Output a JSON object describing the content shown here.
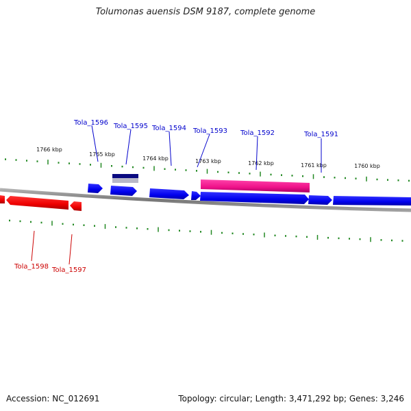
{
  "title": "Tolumonas auensis DSM 9187, complete genome",
  "footer": {
    "accession": "Accession: NC_012691",
    "summary": "Topology: circular; Length: 3,471,292 bp; Genes: 3,246"
  },
  "colors": {
    "forward_gene": "#0000ee",
    "reverse_gene": "#ee0000",
    "highlight_gene": "#ee1188",
    "rna_gene": "#0a0a80",
    "tick": "#228822",
    "backbone": "#808080",
    "forward_label": "#0000cc",
    "reverse_label": "#cc0000"
  },
  "scale_labels": [
    {
      "kbp": 1766,
      "text": "1766 kbp"
    },
    {
      "kbp": 1765,
      "text": "1765 kbp"
    },
    {
      "kbp": 1764,
      "text": "1764 kbp"
    },
    {
      "kbp": 1763,
      "text": "1763 kbp"
    },
    {
      "kbp": 1762,
      "text": "1762 kbp"
    },
    {
      "kbp": 1761,
      "text": "1761 kbp"
    },
    {
      "kbp": 1760,
      "text": "1760 kbp"
    }
  ],
  "genes": {
    "forward": [
      {
        "label": "Tola_1596",
        "name": "gene-tola-1596"
      },
      {
        "label": "Tola_1595",
        "name": "gene-tola-1595"
      },
      {
        "label": "Tola_1594",
        "name": "gene-tola-1594"
      },
      {
        "label": "Tola_1593",
        "name": "gene-tola-1593"
      },
      {
        "label": "Tola_1592",
        "name": "gene-tola-1592"
      },
      {
        "label": "Tola_1591",
        "name": "gene-tola-1591"
      }
    ],
    "reverse": [
      {
        "label": "Tola_1598",
        "name": "gene-tola-1598"
      },
      {
        "label": "Tola_1597",
        "name": "gene-tola-1597"
      }
    ]
  }
}
